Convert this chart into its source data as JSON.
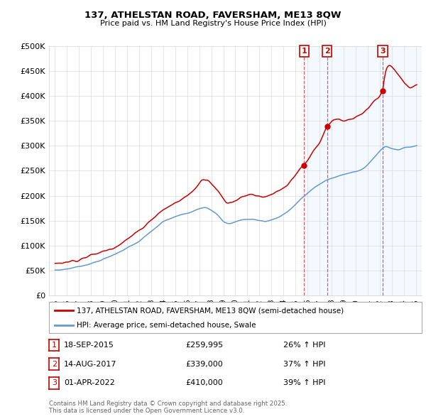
{
  "title": "137, ATHELSTAN ROAD, FAVERSHAM, ME13 8QW",
  "subtitle": "Price paid vs. HM Land Registry's House Price Index (HPI)",
  "red_label": "137, ATHELSTAN ROAD, FAVERSHAM, ME13 8QW (semi-detached house)",
  "blue_label": "HPI: Average price, semi-detached house, Swale",
  "footnote": "Contains HM Land Registry data © Crown copyright and database right 2025.\nThis data is licensed under the Open Government Licence v3.0.",
  "transactions": [
    {
      "num": 1,
      "date": "18-SEP-2015",
      "price": "£259,995",
      "change": "26% ↑ HPI",
      "year": 2015.72,
      "price_val": 259995
    },
    {
      "num": 2,
      "date": "14-AUG-2017",
      "price": "£339,000",
      "change": "37% ↑ HPI",
      "year": 2017.62,
      "price_val": 339000
    },
    {
      "num": 3,
      "date": "01-APR-2022",
      "price": "£410,000",
      "change": "39% ↑ HPI",
      "year": 2022.25,
      "price_val": 410000
    }
  ],
  "ylim": [
    0,
    500000
  ],
  "yticks": [
    0,
    50000,
    100000,
    150000,
    200000,
    250000,
    300000,
    350000,
    400000,
    450000,
    500000
  ],
  "ytick_labels": [
    "£0",
    "£50K",
    "£100K",
    "£150K",
    "£200K",
    "£250K",
    "£300K",
    "£350K",
    "£400K",
    "£450K",
    "£500K"
  ],
  "xlim_start": 1994.5,
  "xlim_end": 2025.5,
  "red_color": "#cc0000",
  "blue_color": "#6699cc",
  "blue_fill": "#ddeeff",
  "background_color": "#ffffff",
  "grid_color": "#cccccc"
}
